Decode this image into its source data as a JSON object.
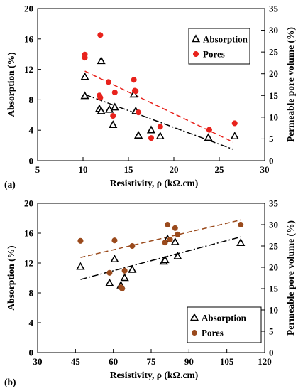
{
  "chart_data": [
    {
      "type": "scatter",
      "panel_label": "(a)",
      "xlabel": "Resistivity, ρ (kΩ.cm)",
      "ylabel": "Absorption (%)",
      "y2label": "Permeable pore volume (%)",
      "xlim": [
        5,
        30
      ],
      "ylim": [
        0,
        20
      ],
      "y2lim": [
        0,
        35
      ],
      "xticks": [
        5,
        10,
        15,
        20,
        25,
        30
      ],
      "yticks": [
        0,
        4,
        8,
        12,
        16,
        20
      ],
      "y2ticks": [
        0,
        5,
        10,
        15,
        20,
        25,
        30,
        35
      ],
      "grid": false,
      "legend_position": "top-right",
      "legend_boxed": true,
      "series": [
        {
          "name": "Absorption",
          "axis": "left",
          "marker": "open-triangle",
          "color": "#000000",
          "points": [
            [
              10.2,
              11.0
            ],
            [
              10.2,
              8.5
            ],
            [
              11.8,
              6.8
            ],
            [
              12.0,
              13.1
            ],
            [
              12.0,
              6.5
            ],
            [
              12.9,
              6.7
            ],
            [
              13.3,
              4.7
            ],
            [
              13.5,
              7.0
            ],
            [
              15.6,
              8.7
            ],
            [
              15.8,
              6.5
            ],
            [
              16.1,
              3.3
            ],
            [
              17.5,
              4.0
            ],
            [
              18.5,
              3.2
            ],
            [
              23.8,
              3.0
            ],
            [
              26.7,
              3.2
            ]
          ],
          "trend": {
            "style": "dash-dot",
            "color": "#000000",
            "from": [
              10.2,
              8.7
            ],
            "to": [
              26.5,
              1.5
            ]
          }
        },
        {
          "name": "Pores",
          "axis": "right",
          "marker": "filled-circle",
          "color": "#e8221c",
          "points": [
            [
              10.2,
              24.4
            ],
            [
              10.2,
              23.7
            ],
            [
              11.9,
              28.9
            ],
            [
              11.8,
              15.0
            ],
            [
              11.9,
              14.5
            ],
            [
              12.8,
              18.1
            ],
            [
              13.3,
              10.3
            ],
            [
              13.5,
              15.7
            ],
            [
              15.6,
              18.6
            ],
            [
              15.7,
              16.1
            ],
            [
              15.8,
              16.0
            ],
            [
              16.1,
              11.1
            ],
            [
              17.5,
              5.2
            ],
            [
              18.5,
              7.8
            ],
            [
              23.9,
              7.1
            ],
            [
              26.7,
              8.6
            ]
          ],
          "trend": {
            "style": "dashed",
            "color": "#e8221c",
            "from": [
              10.2,
              20.6
            ],
            "to": [
              26.5,
              4.3
            ]
          }
        }
      ]
    },
    {
      "type": "scatter",
      "panel_label": "(b)",
      "xlabel": "Resistivity, ρ (kΩ.cm)",
      "ylabel": "Absorption (%)",
      "y2label": "Permeable pore volume (%)",
      "xlim": [
        30,
        120
      ],
      "ylim": [
        0,
        20
      ],
      "y2lim": [
        0,
        35
      ],
      "xticks": [
        30,
        45,
        60,
        75,
        90,
        105,
        120
      ],
      "yticks": [
        0,
        4,
        8,
        12,
        16,
        20
      ],
      "y2ticks": [
        0,
        5,
        10,
        15,
        20,
        25,
        30,
        35
      ],
      "grid": false,
      "legend_position": "bottom-right",
      "legend_boxed": true,
      "series": [
        {
          "name": "Absorption",
          "axis": "left",
          "marker": "open-triangle",
          "color": "#000000",
          "points": [
            [
              47,
              11.5
            ],
            [
              58.5,
              9.3
            ],
            [
              60.5,
              12.5
            ],
            [
              63,
              9.0
            ],
            [
              64.5,
              10.0
            ],
            [
              67.5,
              11.1
            ],
            [
              80,
              12.2
            ],
            [
              80.5,
              12.4
            ],
            [
              81.5,
              15.2
            ],
            [
              84.5,
              14.8
            ],
            [
              85.5,
              12.9
            ],
            [
              110.5,
              14.7
            ]
          ],
          "trend": {
            "style": "dash-dot",
            "color": "#000000",
            "from": [
              47,
              9.8
            ],
            "to": [
              110.5,
              15.5
            ]
          }
        },
        {
          "name": "Pores",
          "axis": "right",
          "marker": "filled-circle",
          "color": "#9a4a1c",
          "points": [
            [
              47,
              26.2
            ],
            [
              58.5,
              18.7
            ],
            [
              60.5,
              26.3
            ],
            [
              63,
              15.3
            ],
            [
              63.5,
              15.0
            ],
            [
              64.5,
              19.2
            ],
            [
              67.5,
              25.0
            ],
            [
              80.5,
              25.8
            ],
            [
              81.5,
              30.0
            ],
            [
              82.5,
              26.5
            ],
            [
              84.5,
              29.2
            ],
            [
              85.5,
              27.7
            ],
            [
              110.5,
              30.0
            ]
          ],
          "trend": {
            "style": "dashed",
            "color": "#9a4a1c",
            "from": [
              47,
              22.3
            ],
            "to": [
              110.5,
              31.1
            ]
          }
        }
      ]
    }
  ]
}
